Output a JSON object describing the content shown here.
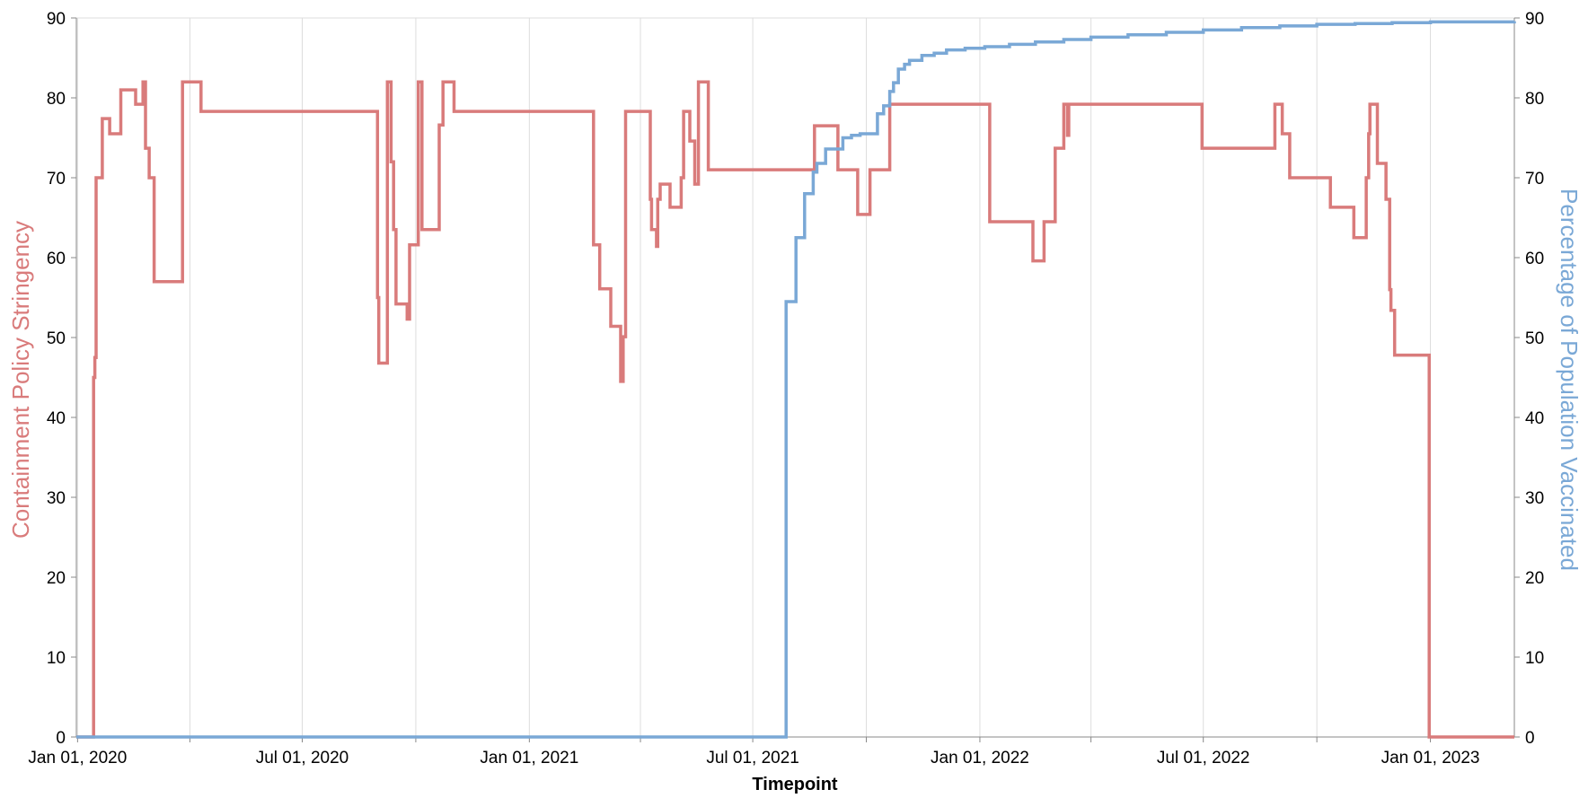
{
  "chart_data": {
    "type": "line",
    "xlabel": "Timepoint",
    "x_range": [
      "2019-12-31",
      "2023-03-10"
    ],
    "x_tick_labels": [
      "Jan 01, 2020",
      "Jul 01, 2020",
      "Jan 01, 2021",
      "Jul 01, 2021",
      "Jan 01, 2022",
      "Jul 01, 2022",
      "Jan 01, 2023"
    ],
    "x_ticks_all": [
      "2020-01-01",
      "2020-04-01",
      "2020-07-01",
      "2020-10-01",
      "2021-01-01",
      "2021-04-01",
      "2021-07-01",
      "2021-10-01",
      "2022-01-01",
      "2022-04-01",
      "2022-07-01",
      "2022-10-01",
      "2023-01-01"
    ],
    "grid": true,
    "y_left": {
      "label": "Containment Policy Stringency",
      "range": [
        0,
        90
      ],
      "ticks": [
        0,
        10,
        20,
        30,
        40,
        50,
        60,
        70,
        80,
        90
      ],
      "color": "#d97b7b"
    },
    "y_right": {
      "label": "Percentage of Population Vaccinated",
      "range": [
        0,
        90
      ],
      "ticks": [
        0,
        10,
        20,
        30,
        40,
        50,
        60,
        70,
        80,
        90
      ],
      "color": "#7aa8d6"
    },
    "series": [
      {
        "name": "Containment Policy Stringency",
        "axis": "left",
        "color": "#d97b7b",
        "shape": "step",
        "points": [
          [
            "2019-12-31",
            0
          ],
          [
            "2020-01-12",
            0
          ],
          [
            "2020-01-14",
            45
          ],
          [
            "2020-01-15",
            47.5
          ],
          [
            "2020-01-16",
            70
          ],
          [
            "2020-01-20",
            70
          ],
          [
            "2020-01-21",
            77.4
          ],
          [
            "2020-01-27",
            75.5
          ],
          [
            "2020-02-05",
            81
          ],
          [
            "2020-02-17",
            79.2
          ],
          [
            "2020-02-23",
            82
          ],
          [
            "2020-02-25",
            73.7
          ],
          [
            "2020-02-28",
            70
          ],
          [
            "2020-03-03",
            57
          ],
          [
            "2020-03-26",
            82
          ],
          [
            "2020-04-10",
            78.3
          ],
          [
            "2020-08-31",
            55
          ],
          [
            "2020-09-01",
            46.8
          ],
          [
            "2020-09-08",
            82
          ],
          [
            "2020-09-11",
            72
          ],
          [
            "2020-09-13",
            63.5
          ],
          [
            "2020-09-15",
            54.2
          ],
          [
            "2020-09-24",
            52.3
          ],
          [
            "2020-09-26",
            61.6
          ],
          [
            "2020-10-03",
            82
          ],
          [
            "2020-10-06",
            63.5
          ],
          [
            "2020-10-20",
            76.6
          ],
          [
            "2020-10-23",
            82
          ],
          [
            "2020-11-01",
            78.3
          ],
          [
            "2021-02-22",
            61.6
          ],
          [
            "2021-02-27",
            56.1
          ],
          [
            "2021-03-08",
            51.4
          ],
          [
            "2021-03-16",
            44.5
          ],
          [
            "2021-03-18",
            50.1
          ],
          [
            "2021-03-20",
            78.3
          ],
          [
            "2021-04-09",
            67.3
          ],
          [
            "2021-04-10",
            63.5
          ],
          [
            "2021-04-14",
            61.4
          ],
          [
            "2021-04-15",
            67.3
          ],
          [
            "2021-04-17",
            69.2
          ],
          [
            "2021-04-25",
            66.3
          ],
          [
            "2021-05-04",
            70
          ],
          [
            "2021-05-06",
            78.3
          ],
          [
            "2021-05-11",
            74.6
          ],
          [
            "2021-05-15",
            69.2
          ],
          [
            "2021-05-18",
            82
          ],
          [
            "2021-05-26",
            71
          ],
          [
            "2021-08-20",
            76.5
          ],
          [
            "2021-09-08",
            71
          ],
          [
            "2021-09-24",
            65.4
          ],
          [
            "2021-10-04",
            71
          ],
          [
            "2021-10-20",
            79.2
          ],
          [
            "2022-01-09",
            64.5
          ],
          [
            "2022-02-13",
            59.6
          ],
          [
            "2022-02-22",
            64.5
          ],
          [
            "2022-03-03",
            73.7
          ],
          [
            "2022-03-10",
            79.2
          ],
          [
            "2022-03-13",
            75.3
          ],
          [
            "2022-03-14",
            79.2
          ],
          [
            "2022-06-30",
            73.7
          ],
          [
            "2022-08-28",
            79.2
          ],
          [
            "2022-09-03",
            75.5
          ],
          [
            "2022-09-09",
            70
          ],
          [
            "2022-10-12",
            66.3
          ],
          [
            "2022-10-31",
            62.5
          ],
          [
            "2022-11-10",
            70
          ],
          [
            "2022-11-12",
            75.5
          ],
          [
            "2022-11-13",
            79.2
          ],
          [
            "2022-11-19",
            71.8
          ],
          [
            "2022-11-26",
            67.3
          ],
          [
            "2022-11-29",
            56
          ],
          [
            "2022-11-30",
            53.4
          ],
          [
            "2022-12-03",
            47.8
          ],
          [
            "2022-12-31",
            0
          ],
          [
            "2023-03-10",
            0
          ]
        ]
      },
      {
        "name": "Percentage of Population Vaccinated",
        "axis": "right",
        "color": "#7aa8d6",
        "shape": "step",
        "points": [
          [
            "2019-12-31",
            0
          ],
          [
            "2021-07-27",
            0
          ],
          [
            "2021-07-28",
            54.5
          ],
          [
            "2021-08-05",
            62.5
          ],
          [
            "2021-08-12",
            68
          ],
          [
            "2021-08-19",
            70.7
          ],
          [
            "2021-08-22",
            71.8
          ],
          [
            "2021-08-29",
            73.6
          ],
          [
            "2021-09-12",
            75
          ],
          [
            "2021-09-19",
            75.3
          ],
          [
            "2021-09-26",
            75.5
          ],
          [
            "2021-10-10",
            78
          ],
          [
            "2021-10-15",
            79
          ],
          [
            "2021-10-20",
            80.8
          ],
          [
            "2021-10-23",
            81.9
          ],
          [
            "2021-10-27",
            83.6
          ],
          [
            "2021-11-01",
            84.2
          ],
          [
            "2021-11-05",
            84.7
          ],
          [
            "2021-11-15",
            85.3
          ],
          [
            "2021-11-25",
            85.6
          ],
          [
            "2021-12-05",
            86
          ],
          [
            "2021-12-20",
            86.2
          ],
          [
            "2022-01-05",
            86.4
          ],
          [
            "2022-01-25",
            86.7
          ],
          [
            "2022-02-15",
            87
          ],
          [
            "2022-03-10",
            87.3
          ],
          [
            "2022-04-01",
            87.6
          ],
          [
            "2022-05-01",
            87.9
          ],
          [
            "2022-06-01",
            88.2
          ],
          [
            "2022-07-01",
            88.5
          ],
          [
            "2022-08-01",
            88.8
          ],
          [
            "2022-09-01",
            89
          ],
          [
            "2022-10-01",
            89.2
          ],
          [
            "2022-11-01",
            89.3
          ],
          [
            "2022-12-01",
            89.4
          ],
          [
            "2023-01-01",
            89.5
          ],
          [
            "2023-03-10",
            89.6
          ]
        ]
      }
    ]
  }
}
